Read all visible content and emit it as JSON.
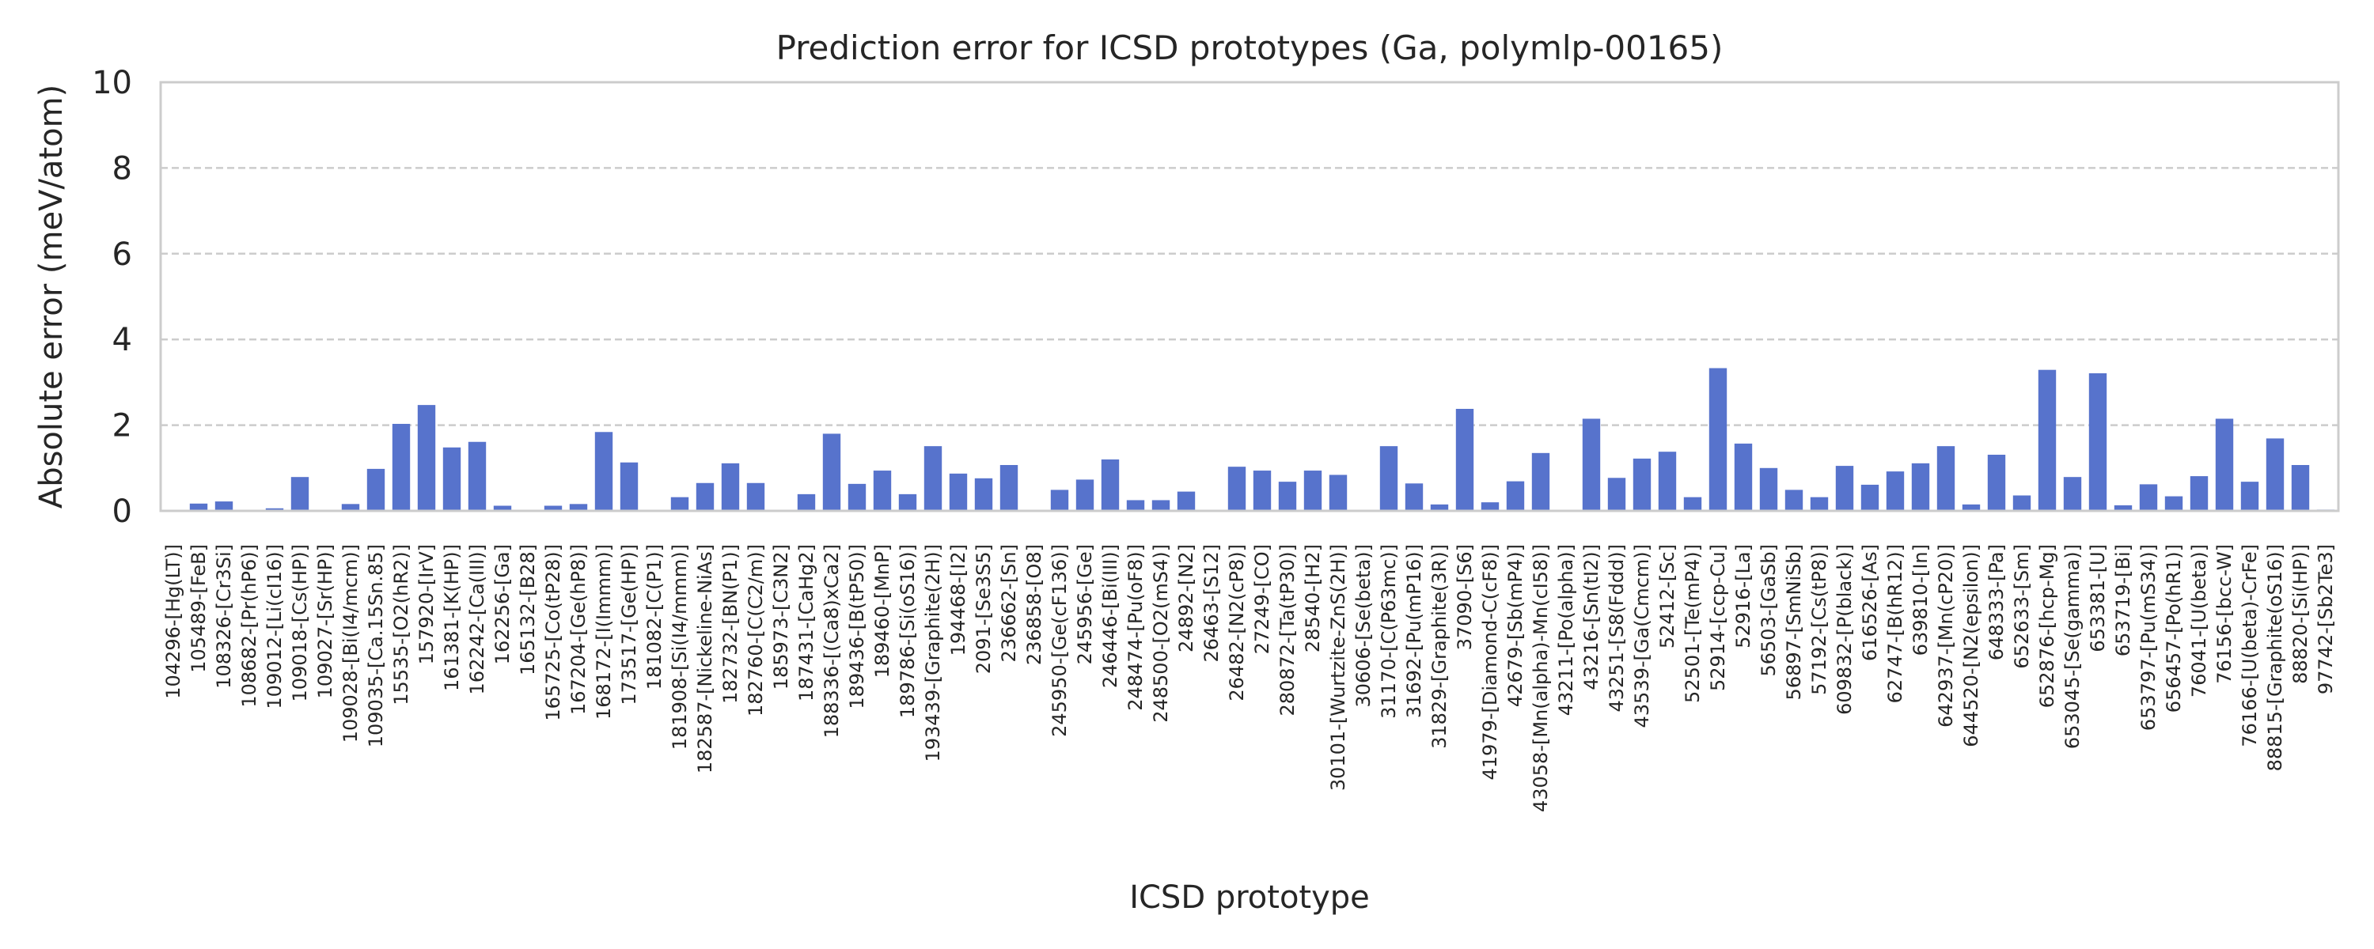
{
  "chart_data": {
    "type": "bar",
    "title": "Prediction error for ICSD prototypes (Ga, polymlp-00165)",
    "xlabel": "ICSD prototype",
    "ylabel": "Absolute error (meV/atom)",
    "ylim": [
      0,
      10
    ],
    "yticks": [
      "0",
      "2",
      "4",
      "6",
      "8",
      "10"
    ],
    "grid": "horizontal dashed",
    "bar_color": "#5773cc",
    "categories": [
      "104296-[Hg(LT)]",
      "105489-[FeB]",
      "108326-[Cr3Si]",
      "108682-[Pr(hP6)]",
      "109012-[Li(cI16)]",
      "109018-[Cs(HP)]",
      "109027-[Sr(HP)]",
      "109028-[Bi(I4/mcm)]",
      "109035-[Ca.15Sn.85]",
      "15535-[O2(hR2)]",
      "157920-[IrV]",
      "161381-[K(HP)]",
      "162242-[Ca(III)]",
      "162256-[Ga]",
      "165132-[B28]",
      "165725-[Co(tP28)]",
      "167204-[Ge(hP8)]",
      "168172-[I(Immm)]",
      "173517-[Ge(HP)]",
      "181082-[C(P1)]",
      "181908-[Si(I4/mmm)]",
      "182587-[Nickeline-NiAs]",
      "182732-[BN(P1)]",
      "182760-[C(C2/m)]",
      "185973-[C3N2]",
      "187431-[CaHg2]",
      "188336-[(Ca8)xCa2]",
      "189436-[B(tP50)]",
      "189460-[MnP]",
      "189786-[Si(oS16)]",
      "193439-[Graphite(2H)]",
      "194468-[I2]",
      "2091-[Se3S5]",
      "236662-[Sn]",
      "236858-[O8]",
      "245950-[Ge(cF136)]",
      "245956-[Ge]",
      "246446-[Bi(III)]",
      "248474-[Pu(oF8)]",
      "248500-[O2(mS4)]",
      "24892-[N2]",
      "26463-[S12]",
      "26482-[N2(cP8)]",
      "27249-[CO]",
      "280872-[Ta(tP30)]",
      "28540-[H2]",
      "30101-[Wurtzite-ZnS(2H)]",
      "30606-[Se(beta)]",
      "31170-[C(P63mc)]",
      "31692-[Pu(mP16)]",
      "31829-[Graphite(3R)]",
      "37090-[S6]",
      "41979-[Diamond-C(cF8)]",
      "42679-[Sb(mP4)]",
      "43058-[Mn(alpha)-Mn(cI58)]",
      "43211-[Po(alpha)]",
      "43216-[Sn(tI2)]",
      "43251-[S8(Fddd)]",
      "43539-[Ga(Cmcm)]",
      "52412-[Sc]",
      "52501-[Te(mP4)]",
      "52914-[ccp-Cu]",
      "52916-[La]",
      "56503-[GaSb]",
      "56897-[SmNiSb]",
      "57192-[Cs(tP8)]",
      "609832-[P(black)]",
      "616526-[As]",
      "62747-[B(hR12)]",
      "639810-[In]",
      "642937-[Mn(cP20)]",
      "644520-[N2(epsilon)]",
      "648333-[Pa]",
      "652633-[Sm]",
      "652876-[hcp-Mg]",
      "653045-[Se(gamma)]",
      "653381-[U]",
      "653719-[Bi]",
      "653797-[Pu(mS34)]",
      "656457-[Po(hR1)]",
      "76041-[U(beta)]",
      "76156-[bcc-W]",
      "76166-[U(beta)-CrFe]",
      "88815-[Graphite(oS16)]",
      "88820-[Si(HP)]",
      "97742-[Sb2Te3]"
    ],
    "values": [
      0.0,
      0.17,
      0.22,
      0.0,
      0.06,
      0.79,
      0.0,
      0.16,
      0.98,
      2.03,
      2.47,
      1.48,
      1.61,
      0.12,
      0.0,
      0.12,
      0.16,
      1.84,
      1.13,
      0.0,
      0.32,
      0.65,
      1.11,
      0.65,
      0.01,
      0.39,
      1.8,
      0.63,
      0.94,
      0.39,
      1.51,
      0.87,
      0.76,
      1.07,
      0.01,
      0.49,
      0.73,
      1.2,
      0.25,
      0.25,
      0.45,
      0.0,
      1.03,
      0.94,
      0.68,
      0.94,
      0.84,
      0.0,
      1.51,
      0.64,
      0.15,
      2.38,
      0.2,
      0.69,
      1.35,
      0.0,
      2.15,
      0.77,
      1.22,
      1.38,
      0.32,
      3.33,
      1.57,
      1.0,
      0.49,
      0.32,
      1.05,
      0.61,
      0.92,
      1.11,
      1.51,
      0.15,
      1.31,
      0.36,
      3.29,
      0.79,
      3.21,
      0.13,
      0.62,
      0.34,
      0.81,
      2.15,
      0.68,
      1.69,
      1.07,
      0.03
    ]
  }
}
